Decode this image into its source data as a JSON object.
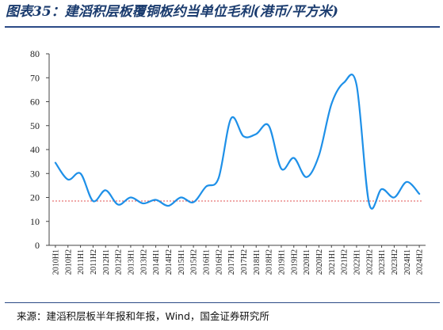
{
  "title": "图表35：建滔积层板覆铜板约当单位毛利(港币/平方米)",
  "source": "来源：建滔积层板半年报和年报，Wind，国金证券研究所",
  "colors": {
    "line": "#1e90e8",
    "reference": "#e05050",
    "axis": "#444444",
    "title": "#1a3b6e"
  },
  "chart_data": {
    "type": "line",
    "categories": [
      "2010H1",
      "2010H2",
      "2011H1",
      "2011H2",
      "2012H1",
      "2012H2",
      "2013H1",
      "2013H2",
      "2014H1",
      "2014H2",
      "2015H1",
      "2015H2",
      "2016H1",
      "2016H2",
      "2017H1",
      "2017H2",
      "2018H1",
      "2018H2",
      "2019H1",
      "2019H2",
      "2020H1",
      "2020H2",
      "2021H1",
      "2021H2",
      "2022H1",
      "2022H2",
      "2023H1",
      "2023H2",
      "2024H1",
      "2024H2"
    ],
    "series": [
      {
        "values": [
          34.5,
          27.5,
          30,
          18.5,
          23,
          17,
          20,
          17.5,
          19,
          16.5,
          20,
          18,
          24.5,
          28,
          53,
          45.5,
          46.5,
          50,
          32,
          36.5,
          28.5,
          37.5,
          59,
          68,
          67,
          17.5,
          23.5,
          20,
          26.5,
          21.5
        ]
      }
    ],
    "reference_line": 18.5,
    "ylim": [
      0,
      80
    ],
    "yticks": [
      0,
      10,
      20,
      30,
      40,
      50,
      60,
      70,
      80
    ],
    "xlabel": "",
    "ylabel": "",
    "grid": false
  }
}
